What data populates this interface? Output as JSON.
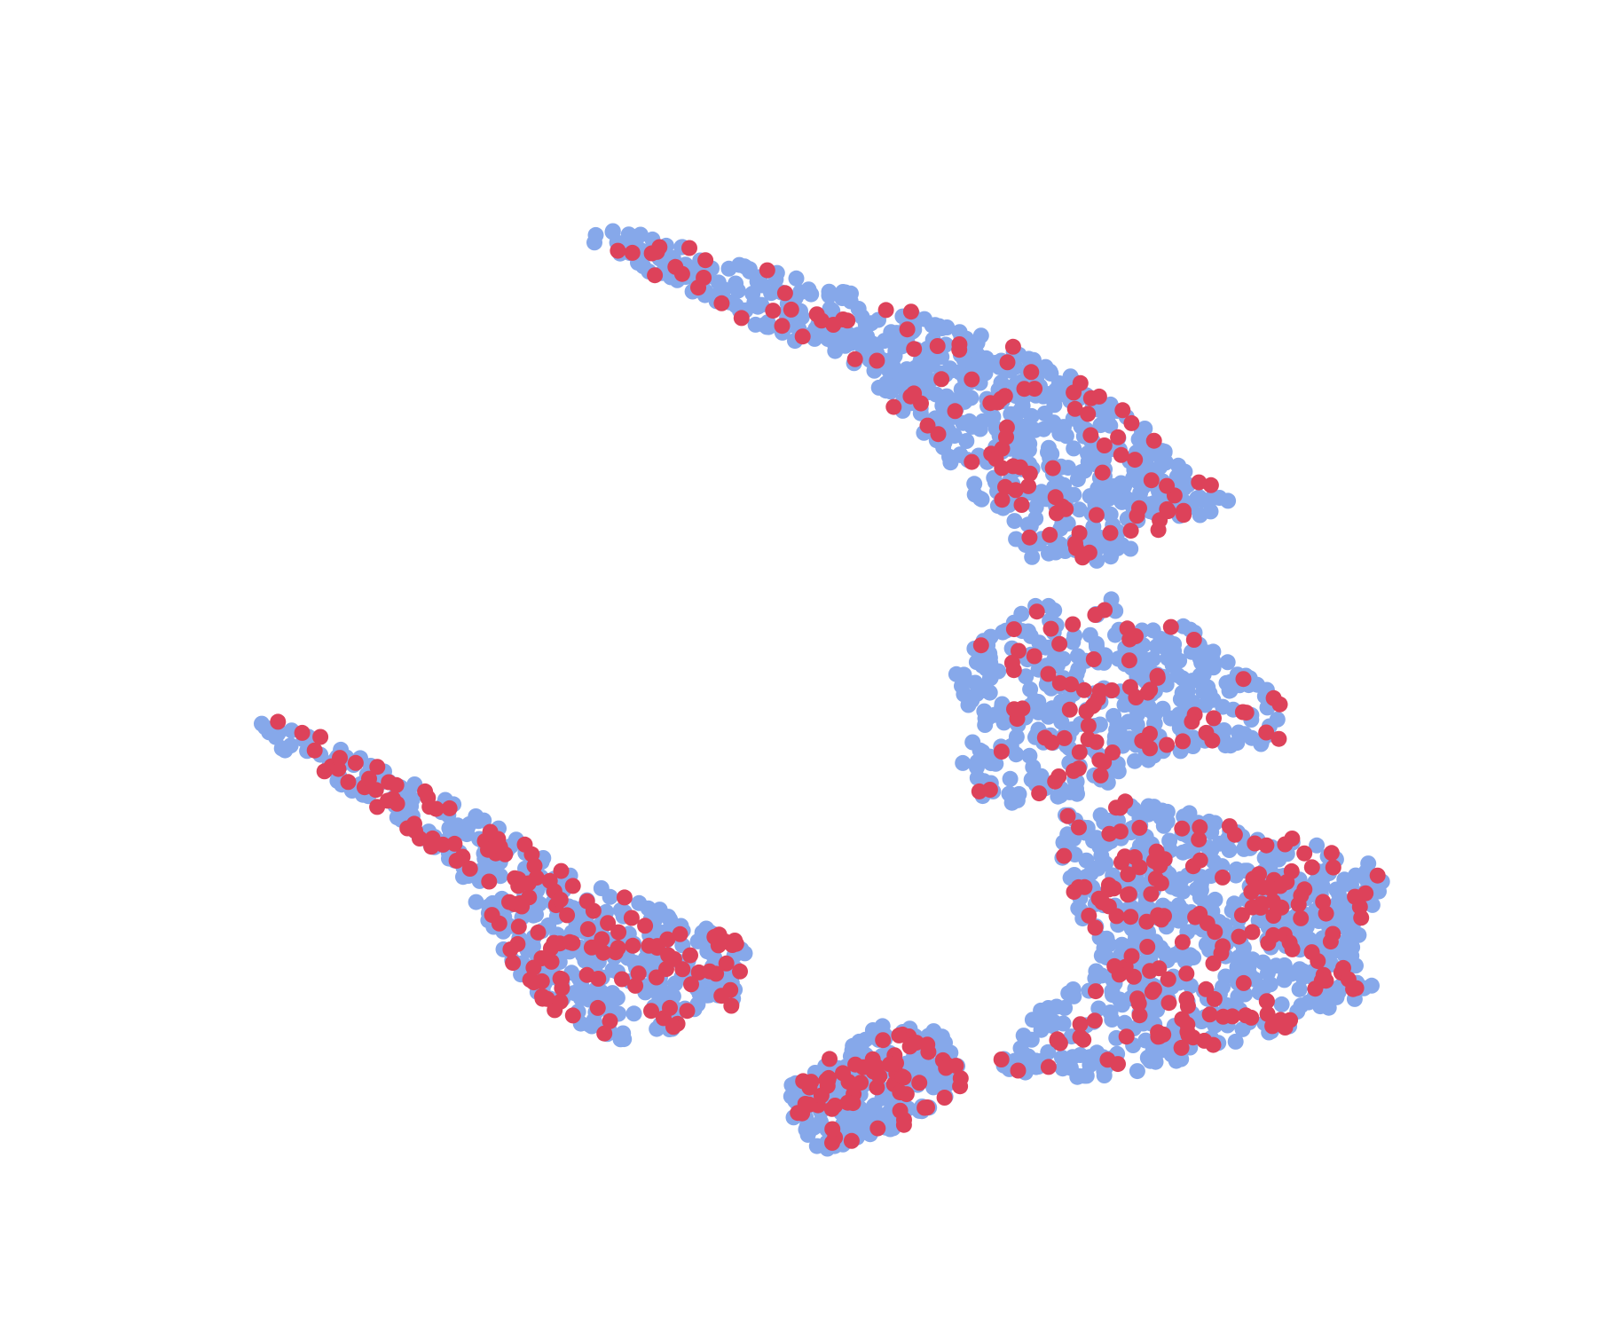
{
  "chart_data": {
    "type": "scatter",
    "title": "",
    "xlabel": "",
    "ylabel": "",
    "axes_visible": false,
    "grid": false,
    "legend": "none",
    "xlim": [
      0,
      100
    ],
    "ylim": [
      0,
      100
    ],
    "series": [
      {
        "color": "#86a8ea",
        "clusters": [
          {
            "polygon": [
              [
                38.0,
                17.0
              ],
              [
                36.5,
                18.2
              ],
              [
                41.5,
                21.0
              ],
              [
                47.0,
                24.3
              ],
              [
                54.0,
                28.0
              ],
              [
                58.0,
                33.5
              ],
              [
                62.5,
                39.0
              ],
              [
                64.5,
                42.0
              ],
              [
                70.0,
                42.3
              ],
              [
                72.0,
                40.0
              ],
              [
                77.5,
                38.2
              ],
              [
                73.5,
                34.0
              ],
              [
                68.5,
                29.0
              ],
              [
                62.5,
                25.5
              ],
              [
                56.0,
                23.0
              ],
              [
                47.5,
                20.0
              ],
              [
                41.5,
                18.0
              ]
            ],
            "count": 560
          },
          {
            "polygon": [
              [
                59.5,
                50.0
              ],
              [
                64.5,
                45.5
              ],
              [
                69.0,
                44.5
              ],
              [
                74.5,
                47.0
              ],
              [
                78.0,
                50.5
              ],
              [
                80.5,
                53.0
              ],
              [
                80.0,
                56.0
              ],
              [
                74.0,
                56.5
              ],
              [
                71.0,
                58.0
              ],
              [
                67.0,
                60.0
              ],
              [
                62.0,
                60.5
              ],
              [
                60.0,
                58.5
              ],
              [
                61.0,
                54.0
              ]
            ],
            "count": 330
          },
          {
            "polygon": [
              [
                66.5,
                61.0
              ],
              [
                72.0,
                59.5
              ],
              [
                78.0,
                62.5
              ],
              [
                84.5,
                63.5
              ],
              [
                87.0,
                66.0
              ],
              [
                85.0,
                70.5
              ],
              [
                86.5,
                74.5
              ],
              [
                80.0,
                77.5
              ],
              [
                72.5,
                80.5
              ],
              [
                67.5,
                81.0
              ],
              [
                62.0,
                80.5
              ],
              [
                64.5,
                76.5
              ],
              [
                69.0,
                72.5
              ],
              [
                66.5,
                66.0
              ]
            ],
            "count": 560
          },
          {
            "polygon": [
              [
                16.0,
                53.5
              ],
              [
                20.5,
                55.5
              ],
              [
                27.0,
                59.5
              ],
              [
                32.5,
                63.0
              ],
              [
                38.5,
                67.0
              ],
              [
                47.0,
                71.0
              ],
              [
                46.0,
                75.5
              ],
              [
                40.0,
                78.5
              ],
              [
                35.5,
                77.0
              ],
              [
                32.5,
                73.5
              ],
              [
                30.0,
                69.0
              ],
              [
                28.0,
                64.5
              ],
              [
                22.5,
                60.0
              ],
              [
                17.0,
                56.0
              ]
            ],
            "count": 360
          },
          {
            "polygon": [
              [
                49.5,
                81.5
              ],
              [
                55.0,
                77.0
              ],
              [
                59.0,
                77.5
              ],
              [
                60.5,
                81.5
              ],
              [
                56.0,
                85.0
              ],
              [
                51.5,
                86.5
              ],
              [
                49.5,
                84.5
              ]
            ],
            "count": 190
          }
        ]
      },
      {
        "color": "#dd425a",
        "clusters": [
          {
            "polygon": [
              [
                38.0,
                17.0
              ],
              [
                36.5,
                18.2
              ],
              [
                41.5,
                21.0
              ],
              [
                47.0,
                24.3
              ],
              [
                54.0,
                28.0
              ],
              [
                58.0,
                33.5
              ],
              [
                62.5,
                39.0
              ],
              [
                64.5,
                42.0
              ],
              [
                70.0,
                42.3
              ],
              [
                72.0,
                40.0
              ],
              [
                77.5,
                38.2
              ],
              [
                73.5,
                34.0
              ],
              [
                68.5,
                29.0
              ],
              [
                62.5,
                25.5
              ],
              [
                56.0,
                23.0
              ],
              [
                47.5,
                20.0
              ],
              [
                41.5,
                18.0
              ]
            ],
            "count": 110
          },
          {
            "polygon": [
              [
                59.5,
                50.0
              ],
              [
                64.5,
                45.5
              ],
              [
                69.0,
                44.5
              ],
              [
                74.5,
                47.0
              ],
              [
                78.0,
                50.5
              ],
              [
                80.5,
                53.0
              ],
              [
                80.0,
                56.0
              ],
              [
                74.0,
                56.5
              ],
              [
                71.0,
                58.0
              ],
              [
                67.0,
                60.0
              ],
              [
                62.0,
                60.5
              ],
              [
                60.0,
                58.5
              ],
              [
                61.0,
                54.0
              ]
            ],
            "count": 75
          },
          {
            "polygon": [
              [
                66.5,
                61.0
              ],
              [
                72.0,
                59.5
              ],
              [
                78.0,
                62.5
              ],
              [
                84.5,
                63.5
              ],
              [
                87.0,
                66.0
              ],
              [
                85.0,
                70.5
              ],
              [
                86.5,
                74.5
              ],
              [
                80.0,
                77.5
              ],
              [
                72.5,
                80.5
              ],
              [
                67.5,
                81.0
              ],
              [
                62.0,
                80.5
              ],
              [
                64.5,
                76.5
              ],
              [
                69.0,
                72.5
              ],
              [
                66.5,
                66.0
              ]
            ],
            "count": 170
          },
          {
            "polygon": [
              [
                16.0,
                53.5
              ],
              [
                20.5,
                55.5
              ],
              [
                27.0,
                59.5
              ],
              [
                32.5,
                63.0
              ],
              [
                38.5,
                67.0
              ],
              [
                47.0,
                71.0
              ],
              [
                46.0,
                75.5
              ],
              [
                40.0,
                78.5
              ],
              [
                35.5,
                77.0
              ],
              [
                32.5,
                73.5
              ],
              [
                30.0,
                69.0
              ],
              [
                28.0,
                64.5
              ],
              [
                22.5,
                60.0
              ],
              [
                17.0,
                56.0
              ]
            ],
            "count": 150
          },
          {
            "polygon": [
              [
                49.5,
                81.5
              ],
              [
                55.0,
                77.0
              ],
              [
                59.0,
                77.5
              ],
              [
                60.5,
                81.5
              ],
              [
                56.0,
                85.0
              ],
              [
                51.5,
                86.5
              ],
              [
                49.5,
                84.5
              ]
            ],
            "count": 65
          }
        ]
      }
    ]
  }
}
